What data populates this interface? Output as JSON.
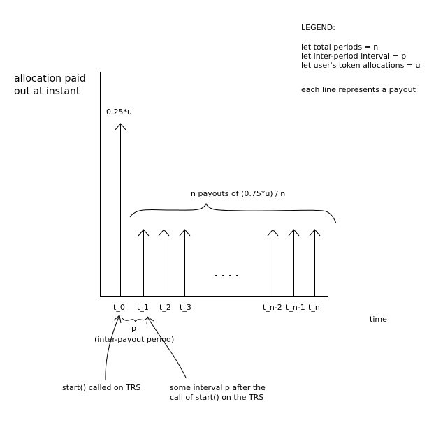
{
  "legend": {
    "title": "LEGEND:",
    "lines": [
      "let total periods = n",
      "let inter-period interval = p",
      "let user's token allocations = u"
    ],
    "note": "each line represents a payout"
  },
  "axes": {
    "y_label_line1": "allocation paid",
    "y_label_line2": "out at instant",
    "x_label": "time"
  },
  "first_payout_label": "0.25*u",
  "brace_label": "n payouts of (0.75*u) / n",
  "ellipsis": ". . . .",
  "ticks": [
    "t_0",
    "t_1",
    "t_2",
    "t_3",
    "t_n-2",
    "t_n-1",
    "t_n"
  ],
  "interval": {
    "symbol": "p",
    "description": "(inter-payout period)"
  },
  "annotations": {
    "start": "start() called on TRS",
    "interval_line1": "some interval p after the",
    "interval_line2": "call of start() on the TRS"
  }
}
